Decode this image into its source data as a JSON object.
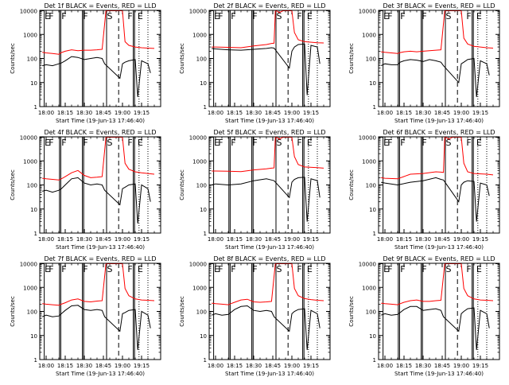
{
  "page": {
    "background": "#ffffff"
  },
  "colors": {
    "events": "#000000",
    "lld": "#ff0000",
    "axis": "#000000"
  },
  "shared": {
    "ylabel": "Counts/sec",
    "xlabel": "Start Time (19-Jun-13 17:46:40)",
    "xtick_labels": [
      "18:00",
      "18:15",
      "18:30",
      "18:45",
      "19:00",
      "19:15"
    ],
    "xtick_minutes": [
      0,
      15,
      30,
      45,
      60,
      75
    ],
    "ytick_labels": [
      "1",
      "10",
      "100",
      "1000",
      "10000"
    ],
    "ytick_values": [
      1,
      10,
      100,
      1000,
      10000
    ],
    "xlim_minutes": [
      -5,
      90
    ],
    "ylim": [
      1,
      10000
    ],
    "yscale": "log",
    "markers": {
      "solid_lines_minutes": [
        -1.5,
        10.5,
        11.5,
        28.5,
        29.5,
        47.5,
        68.5,
        69.5
      ],
      "dashed_lines_minutes": [
        57
      ],
      "dotted_lines_minutes": [
        73,
        80
      ],
      "letters": [
        {
          "t": "E",
          "minute": 1
        },
        {
          "t": "F",
          "minute": 4
        },
        {
          "t": "F",
          "minute": 14
        },
        {
          "t": "F",
          "minute": 31
        },
        {
          "t": "S",
          "minute": 50
        },
        {
          "t": "F",
          "minute": 66
        },
        {
          "t": "E",
          "minute": 74
        }
      ]
    }
  },
  "chart_data": [
    {
      "type": "line",
      "title": "Det 1f BLACK = Events, RED = LLD",
      "xlabel": "Start Time (19-Jun-13 17:46:40)",
      "ylabel": "Counts/sec",
      "yscale": "log",
      "ylim": [
        1,
        10000
      ],
      "series": [
        {
          "color": "red",
          "x": [
            -3,
            0,
            5,
            10,
            12,
            15,
            20,
            25,
            30,
            35,
            40,
            44,
            47,
            48,
            50,
            60,
            62,
            65,
            70,
            75,
            80,
            85
          ],
          "y": [
            180,
            170,
            160,
            150,
            175,
            200,
            230,
            210,
            220,
            220,
            230,
            240,
            11000,
            11000,
            11000,
            11000,
            500,
            350,
            300,
            280,
            270,
            260
          ]
        },
        {
          "color": "black",
          "x": [
            -3,
            0,
            5,
            10,
            12,
            15,
            20,
            25,
            30,
            35,
            40,
            44,
            46,
            58,
            60,
            62,
            65,
            70,
            72,
            75,
            80,
            82
          ],
          "y": [
            50,
            55,
            50,
            60,
            65,
            80,
            120,
            110,
            90,
            100,
            110,
            100,
            60,
            15,
            60,
            70,
            80,
            90,
            2.5,
            80,
            60,
            25
          ]
        }
      ]
    },
    {
      "type": "line",
      "title": "Det 2f BLACK = Events, RED = LLD",
      "xlabel": "Start Time (19-Jun-13 17:46:40)",
      "ylabel": "Counts/sec",
      "yscale": "log",
      "ylim": [
        1,
        10000
      ],
      "series": [
        {
          "color": "red",
          "x": [
            -3,
            0,
            10,
            20,
            30,
            40,
            44,
            46,
            47,
            48,
            50,
            53,
            55,
            58,
            60,
            62,
            65,
            70,
            80,
            85
          ],
          "y": [
            300,
            300,
            290,
            280,
            330,
            380,
            420,
            430,
            11000,
            11000,
            8000,
            11000,
            11000,
            11000,
            11000,
            1200,
            600,
            500,
            450,
            440
          ]
        },
        {
          "color": "black",
          "x": [
            -3,
            0,
            10,
            20,
            30,
            40,
            44,
            46,
            58,
            60,
            62,
            65,
            70,
            72,
            75,
            80,
            82
          ],
          "y": [
            260,
            250,
            230,
            220,
            240,
            260,
            280,
            270,
            40,
            200,
            300,
            380,
            400,
            3,
            350,
            300,
            60
          ]
        }
      ]
    },
    {
      "type": "line",
      "title": "Det 3f BLACK = Events, RED = LLD",
      "xlabel": "Start Time (19-Jun-13 17:46:40)",
      "ylabel": "Counts/sec",
      "yscale": "log",
      "ylim": [
        1,
        10000
      ],
      "series": [
        {
          "color": "red",
          "x": [
            -3,
            0,
            5,
            10,
            12,
            15,
            20,
            25,
            30,
            35,
            40,
            44,
            47,
            48,
            50,
            60,
            62,
            65,
            70,
            75,
            80,
            85
          ],
          "y": [
            190,
            180,
            170,
            160,
            175,
            190,
            200,
            190,
            200,
            210,
            220,
            230,
            11000,
            11000,
            11000,
            11000,
            700,
            400,
            320,
            300,
            280,
            270
          ]
        },
        {
          "color": "black",
          "x": [
            -3,
            0,
            5,
            10,
            12,
            15,
            20,
            25,
            30,
            35,
            40,
            44,
            46,
            58,
            60,
            62,
            65,
            70,
            72,
            75,
            80,
            82
          ],
          "y": [
            50,
            60,
            55,
            55,
            70,
            80,
            90,
            85,
            75,
            90,
            80,
            70,
            50,
            10,
            60,
            70,
            90,
            100,
            2.5,
            80,
            60,
            20
          ]
        }
      ]
    },
    {
      "type": "line",
      "title": "Det 4f BLACK = Events, RED = LLD",
      "xlabel": "Start Time (19-Jun-13 17:46:40)",
      "ylabel": "Counts/sec",
      "yscale": "log",
      "ylim": [
        1,
        10000
      ],
      "series": [
        {
          "color": "red",
          "x": [
            -3,
            0,
            5,
            10,
            12,
            15,
            20,
            25,
            30,
            35,
            40,
            44,
            47,
            48,
            50,
            60,
            62,
            65,
            70,
            75,
            80,
            85
          ],
          "y": [
            190,
            180,
            170,
            160,
            180,
            220,
            320,
            400,
            250,
            200,
            210,
            220,
            11000,
            11000,
            11000,
            11000,
            800,
            450,
            350,
            320,
            300,
            280
          ]
        },
        {
          "color": "black",
          "x": [
            -3,
            0,
            5,
            10,
            12,
            15,
            20,
            25,
            30,
            35,
            40,
            44,
            46,
            58,
            60,
            62,
            65,
            70,
            72,
            75,
            80,
            82
          ],
          "y": [
            55,
            60,
            50,
            60,
            70,
            100,
            180,
            200,
            120,
            100,
            110,
            100,
            60,
            15,
            70,
            80,
            100,
            110,
            2.5,
            100,
            70,
            20
          ]
        }
      ]
    },
    {
      "type": "line",
      "title": "Det 5f BLACK = Events, RED = LLD",
      "xlabel": "Start Time (19-Jun-13 17:46:40)",
      "ylabel": "Counts/sec",
      "yscale": "log",
      "ylim": [
        1,
        10000
      ],
      "series": [
        {
          "color": "red",
          "x": [
            -3,
            0,
            10,
            20,
            30,
            40,
            44,
            46,
            47,
            48,
            50,
            53,
            55,
            58,
            60,
            62,
            65,
            70,
            80,
            85
          ],
          "y": [
            380,
            380,
            370,
            360,
            420,
            470,
            500,
            510,
            11000,
            11000,
            8000,
            11000,
            11000,
            11000,
            11000,
            1500,
            700,
            560,
            520,
            500
          ]
        },
        {
          "color": "black",
          "x": [
            -3,
            0,
            10,
            20,
            30,
            40,
            44,
            46,
            58,
            60,
            62,
            65,
            70,
            72,
            75,
            80,
            82
          ],
          "y": [
            100,
            110,
            100,
            110,
            150,
            180,
            160,
            150,
            30,
            130,
            170,
            200,
            210,
            3,
            180,
            150,
            30
          ]
        }
      ]
    },
    {
      "type": "line",
      "title": "Det 6f BLACK = Events, RED = LLD",
      "xlabel": "Start Time (19-Jun-13 17:46:40)",
      "ylabel": "Counts/sec",
      "yscale": "log",
      "ylim": [
        1,
        10000
      ],
      "series": [
        {
          "color": "red",
          "x": [
            -3,
            0,
            10,
            20,
            30,
            40,
            44,
            46,
            47,
            48,
            50,
            53,
            55,
            58,
            60,
            62,
            65,
            70,
            80,
            85
          ],
          "y": [
            200,
            190,
            180,
            280,
            300,
            350,
            340,
            330,
            11000,
            11000,
            8000,
            11000,
            11000,
            11000,
            11000,
            800,
            350,
            300,
            280,
            260
          ]
        },
        {
          "color": "black",
          "x": [
            -3,
            0,
            10,
            20,
            30,
            40,
            44,
            46,
            58,
            60,
            62,
            65,
            70,
            72,
            75,
            80,
            82
          ],
          "y": [
            130,
            120,
            100,
            130,
            150,
            200,
            170,
            160,
            20,
            100,
            130,
            150,
            140,
            3,
            120,
            100,
            35
          ]
        }
      ]
    },
    {
      "type": "line",
      "title": "Det 7f BLACK = Events, RED = LLD",
      "xlabel": "Start Time (19-Jun-13 17:46:40)",
      "ylabel": "Counts/sec",
      "yscale": "log",
      "ylim": [
        1,
        10000
      ],
      "series": [
        {
          "color": "red",
          "x": [
            -3,
            0,
            5,
            10,
            12,
            15,
            20,
            25,
            30,
            35,
            40,
            44,
            47,
            48,
            50,
            60,
            62,
            65,
            70,
            75,
            80,
            85
          ],
          "y": [
            210,
            200,
            190,
            180,
            200,
            230,
            300,
            330,
            260,
            250,
            270,
            280,
            11000,
            11000,
            11000,
            11000,
            900,
            450,
            330,
            300,
            290,
            280
          ]
        },
        {
          "color": "black",
          "x": [
            -3,
            0,
            5,
            10,
            12,
            15,
            20,
            25,
            30,
            35,
            40,
            44,
            46,
            58,
            60,
            62,
            65,
            70,
            72,
            75,
            80,
            82
          ],
          "y": [
            60,
            70,
            60,
            65,
            80,
            110,
            170,
            180,
            120,
            110,
            120,
            110,
            60,
            15,
            80,
            90,
            110,
            120,
            2.5,
            100,
            70,
            20
          ]
        }
      ]
    },
    {
      "type": "line",
      "title": "Det 8f BLACK = Events, RED = LLD",
      "xlabel": "Start Time (19-Jun-13 17:46:40)",
      "ylabel": "Counts/sec",
      "yscale": "log",
      "ylim": [
        1,
        10000
      ],
      "series": [
        {
          "color": "red",
          "x": [
            -3,
            0,
            5,
            10,
            12,
            15,
            20,
            25,
            30,
            35,
            40,
            44,
            47,
            48,
            50,
            60,
            62,
            65,
            70,
            75,
            80,
            85
          ],
          "y": [
            220,
            210,
            200,
            190,
            210,
            240,
            300,
            320,
            250,
            240,
            250,
            260,
            11000,
            11000,
            11000,
            11000,
            900,
            450,
            340,
            310,
            290,
            280
          ]
        },
        {
          "color": "black",
          "x": [
            -3,
            0,
            5,
            10,
            12,
            15,
            20,
            25,
            30,
            35,
            40,
            44,
            46,
            58,
            60,
            62,
            65,
            70,
            72,
            75,
            80,
            82
          ],
          "y": [
            70,
            80,
            70,
            75,
            90,
            120,
            160,
            170,
            110,
            100,
            110,
            100,
            60,
            15,
            80,
            100,
            120,
            130,
            2.5,
            110,
            80,
            20
          ]
        }
      ]
    },
    {
      "type": "line",
      "title": "Det 9f BLACK = Events, RED = LLD",
      "xlabel": "Start Time (19-Jun-13 17:46:40)",
      "ylabel": "Counts/sec",
      "yscale": "log",
      "ylim": [
        1,
        10000
      ],
      "series": [
        {
          "color": "red",
          "x": [
            -3,
            0,
            5,
            10,
            12,
            15,
            20,
            25,
            30,
            35,
            40,
            44,
            47,
            48,
            50,
            60,
            62,
            65,
            70,
            75,
            80,
            85
          ],
          "y": [
            220,
            210,
            200,
            190,
            210,
            240,
            280,
            300,
            260,
            260,
            280,
            290,
            11000,
            11000,
            11000,
            11000,
            900,
            450,
            330,
            300,
            290,
            280
          ]
        },
        {
          "color": "black",
          "x": [
            -3,
            0,
            5,
            10,
            12,
            15,
            20,
            25,
            30,
            35,
            40,
            44,
            46,
            58,
            60,
            62,
            65,
            70,
            72,
            75,
            80,
            82
          ],
          "y": [
            70,
            80,
            70,
            75,
            90,
            120,
            160,
            160,
            110,
            120,
            130,
            110,
            60,
            15,
            80,
            100,
            130,
            140,
            2.5,
            110,
            80,
            20
          ]
        }
      ]
    }
  ]
}
